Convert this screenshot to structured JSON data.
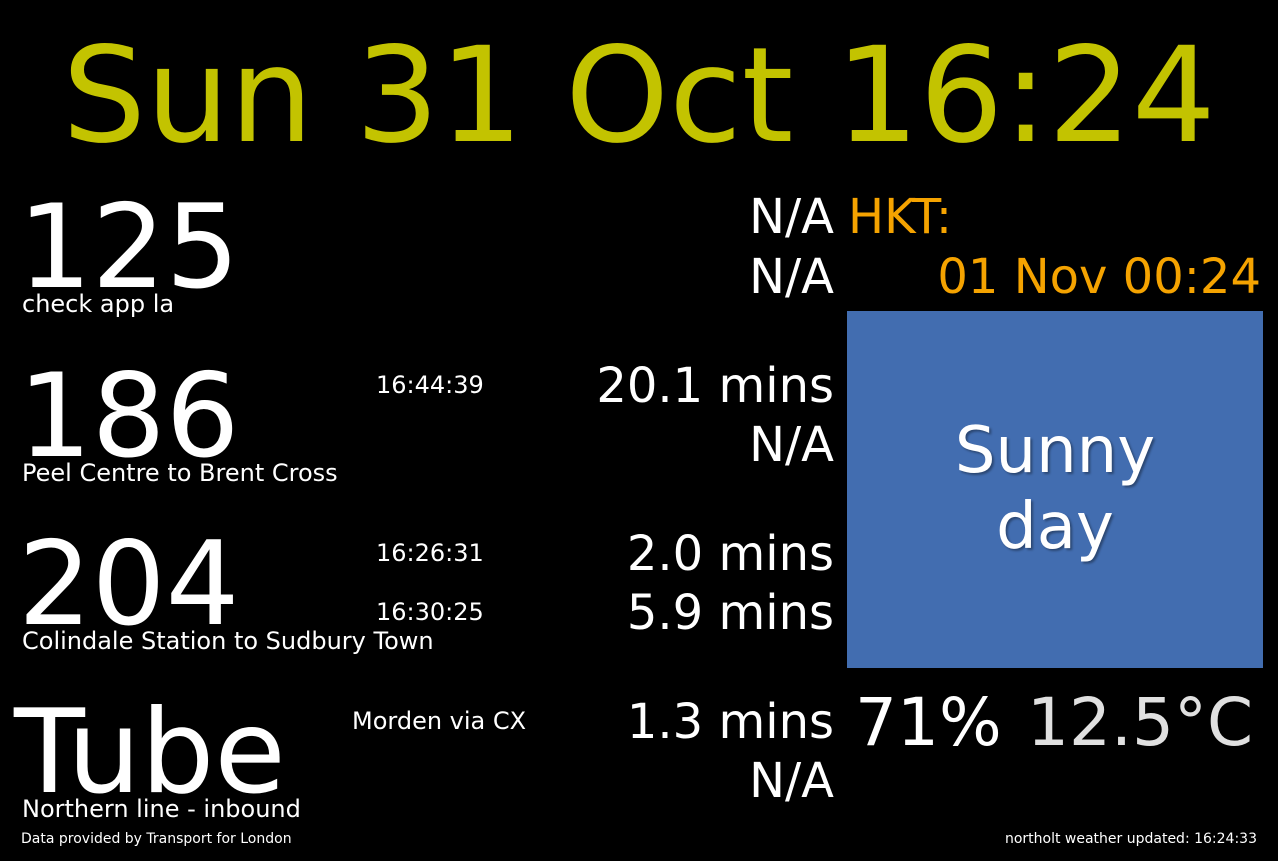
{
  "clock": "Sun 31 Oct 16:24",
  "colors": {
    "background": "#000000",
    "clock": "#c3c300",
    "timezone": "#f5a300",
    "weather_box": "#426db0",
    "text": "#ffffff"
  },
  "routes": [
    {
      "number": "125",
      "description": "check app la",
      "scheduled": [
        "",
        ""
      ],
      "eta": [
        "N/A",
        "N/A"
      ]
    },
    {
      "number": "186",
      "description": "Peel Centre to Brent Cross",
      "scheduled": [
        "16:44:39",
        ""
      ],
      "eta": [
        "20.1 mins",
        "N/A"
      ]
    },
    {
      "number": "204",
      "description": "Colindale Station to Sudbury Town",
      "scheduled": [
        "16:26:31",
        "16:30:25"
      ],
      "eta": [
        "2.0 mins",
        "5.9 mins"
      ]
    },
    {
      "number": "Tube",
      "description": "Northern line - inbound",
      "destination": "Morden via CX",
      "eta": [
        "1.3 mins",
        "N/A"
      ]
    }
  ],
  "timezone": {
    "label": "HKT:",
    "time": "01 Nov 00:24"
  },
  "weather": {
    "summary": "Sunny\nday",
    "humidity": "71%",
    "temperature": "12.5°C"
  },
  "footer": {
    "left": "Data provided by Transport for London",
    "right": "northolt weather updated: 16:24:33"
  }
}
